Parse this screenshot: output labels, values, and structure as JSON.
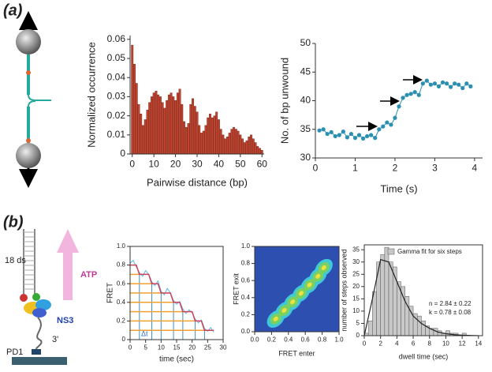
{
  "panel_labels": [
    "(a)",
    "(b)"
  ],
  "diagram": {
    "ds_label": "18 ds",
    "atp": "ATP",
    "ns3": "NS3",
    "end": "3'",
    "pd1": "PD1"
  },
  "chart_data": [
    {
      "type": "bar",
      "x_label": "Pairwise distance (bp)",
      "y_label": "Normalized occurrence",
      "color": "#c0432f",
      "x": [
        0,
        1,
        2,
        3,
        4,
        5,
        6,
        7,
        8,
        9,
        10,
        11,
        12,
        13,
        14,
        15,
        16,
        17,
        18,
        19,
        20,
        21,
        22,
        23,
        24,
        25,
        26,
        27,
        28,
        29,
        30,
        31,
        32,
        33,
        34,
        35,
        36,
        37,
        38,
        39,
        40,
        41,
        42,
        43,
        44,
        45,
        46,
        47,
        48,
        49,
        50,
        51,
        52,
        53,
        54,
        55,
        56,
        57,
        58,
        59,
        60
      ],
      "values": [
        0.057,
        0.047,
        0.037,
        0.026,
        0.021,
        0.015,
        0.018,
        0.023,
        0.027,
        0.03,
        0.032,
        0.033,
        0.031,
        0.03,
        0.027,
        0.024,
        0.028,
        0.031,
        0.032,
        0.03,
        0.028,
        0.032,
        0.034,
        0.026,
        0.017,
        0.014,
        0.016,
        0.026,
        0.029,
        0.025,
        0.022,
        0.015,
        0.011,
        0.012,
        0.015,
        0.019,
        0.021,
        0.019,
        0.02,
        0.022,
        0.018,
        0.013,
        0.01,
        0.008,
        0.009,
        0.011,
        0.013,
        0.014,
        0.013,
        0.012,
        0.01,
        0.008,
        0.006,
        0.007,
        0.009,
        0.01,
        0.008,
        0.006,
        0.004,
        0.003,
        0.002
      ],
      "xlim": [
        -1,
        61
      ],
      "xticks": [
        0,
        10,
        20,
        30,
        40,
        50,
        60
      ],
      "ylim": [
        0,
        0.062
      ],
      "yticks": [
        0,
        0.01,
        0.02,
        0.03,
        0.04,
        0.05,
        0.06
      ]
    },
    {
      "type": "scatter",
      "x_label": "Time (s)",
      "y_label": "No. of bp unwound",
      "color": "#2a8fb0",
      "x": [
        0.1,
        0.2,
        0.3,
        0.4,
        0.5,
        0.6,
        0.7,
        0.8,
        0.9,
        1.0,
        1.1,
        1.2,
        1.3,
        1.4,
        1.5,
        1.6,
        1.7,
        1.8,
        1.9,
        2.0,
        2.1,
        2.2,
        2.3,
        2.4,
        2.5,
        2.6,
        2.7,
        2.8,
        2.9,
        3.0,
        3.1,
        3.2,
        3.3,
        3.4,
        3.5,
        3.6,
        3.7,
        3.8,
        3.9
      ],
      "values": [
        34.8,
        35.0,
        34.2,
        34.5,
        33.8,
        34.0,
        34.6,
        33.6,
        34.2,
        33.5,
        34.0,
        33.4,
        33.8,
        34.0,
        33.5,
        35.0,
        35.5,
        36.2,
        35.8,
        37.0,
        39.0,
        40.5,
        41.0,
        41.2,
        41.5,
        41.0,
        43.0,
        43.5,
        42.8,
        43.0,
        42.5,
        43.2,
        43.0,
        42.4,
        43.0,
        42.8,
        42.2,
        43.0,
        42.5
      ],
      "xlim": [
        0,
        4.2
      ],
      "xticks": [
        0,
        1,
        2,
        3,
        4
      ],
      "ylim": [
        30,
        50
      ],
      "yticks": [
        30,
        35,
        40,
        45,
        50
      ]
    },
    {
      "type": "line",
      "x_label": "time (sec)",
      "y_label": "FRET",
      "annotation": "Δt",
      "x": [
        0,
        1,
        2,
        3,
        4,
        5,
        6,
        7,
        8,
        9,
        10,
        11,
        12,
        13,
        14,
        15,
        16,
        17,
        18,
        19,
        20,
        21,
        22,
        23,
        24,
        25,
        26,
        27
      ],
      "series": [
        {
          "color": "#5bb8e8",
          "values": [
            0.82,
            0.85,
            0.78,
            0.72,
            0.68,
            0.74,
            0.7,
            0.62,
            0.58,
            0.63,
            0.52,
            0.48,
            0.55,
            0.5,
            0.42,
            0.38,
            0.41,
            0.33,
            0.28,
            0.32,
            0.29,
            0.22,
            0.18,
            0.21,
            0.12,
            0.09,
            0.13,
            0.08
          ]
        },
        {
          "color": "#d0405a",
          "values": [
            0.8,
            0.8,
            0.8,
            0.7,
            0.7,
            0.7,
            0.7,
            0.6,
            0.6,
            0.6,
            0.5,
            0.5,
            0.5,
            0.5,
            0.4,
            0.4,
            0.4,
            0.3,
            0.3,
            0.3,
            0.3,
            0.2,
            0.2,
            0.2,
            0.1,
            0.1,
            0.1,
            0.1
          ]
        }
      ],
      "xlim": [
        0,
        30
      ],
      "xticks": [
        0,
        5,
        10,
        15,
        20,
        25,
        30
      ],
      "ylim": [
        0,
        1
      ],
      "yticks": [
        0,
        0.2,
        0.4,
        0.6,
        0.8,
        {
          "value": 1,
          "label": "1.0"
        }
      ]
    },
    {
      "type": "density",
      "x_label": "FRET enter",
      "y_label": "FRET exit",
      "x": [
        0.25,
        0.35,
        0.45,
        0.55,
        0.65,
        0.75,
        0.82
      ],
      "values": [
        0.15,
        0.25,
        0.35,
        0.45,
        0.55,
        0.65,
        0.75
      ],
      "xlim": [
        0,
        1
      ],
      "xticks": [
        {
          "value": 0,
          "label": "0.0"
        },
        0.2,
        0.4,
        0.6,
        0.8,
        {
          "value": 1,
          "label": "1.0"
        }
      ],
      "ylim": [
        0,
        1
      ],
      "yticks": [
        {
          "value": 0,
          "label": "0.0"
        },
        0.2,
        0.4,
        0.6,
        0.8,
        {
          "value": 1,
          "label": "1.0"
        }
      ]
    },
    {
      "type": "histogram",
      "x_label": "dwell time (sec)",
      "y_label": "number of steps observed",
      "bins": [
        0,
        0.5,
        1,
        1.5,
        2,
        2.5,
        3,
        3.5,
        4,
        4.5,
        5,
        5.5,
        6,
        6.5,
        7,
        7.5,
        8,
        8.5,
        9,
        9.5,
        10,
        10.5,
        11,
        11.5,
        12,
        12.5,
        13,
        13.5,
        14
      ],
      "series": [
        {
          "name": "Gamma fit for six steps",
          "color": "#c8c8c8",
          "values": [
            1,
            6,
            18,
            30,
            33,
            36,
            30,
            28,
            22,
            20,
            16,
            12,
            9,
            8,
            6,
            4,
            3,
            3,
            2,
            1,
            2,
            1,
            1,
            0,
            1,
            0,
            0,
            0
          ]
        }
      ],
      "fit": {
        "color": "#222222",
        "x": [
          0,
          1,
          2,
          3,
          4,
          5,
          6,
          7,
          8,
          9,
          10,
          11,
          12,
          13,
          14
        ],
        "values": [
          0,
          15,
          31,
          30,
          22,
          14,
          8,
          5,
          3,
          1.5,
          0.8,
          0.4,
          0.2,
          0.1,
          0
        ]
      },
      "annotations": [
        "n = 2.84 ± 0.22",
        "k = 0.78 ± 0.08"
      ],
      "xlim": [
        0,
        14.5
      ],
      "xticks": [
        0,
        2,
        4,
        6,
        8,
        10,
        12,
        14
      ],
      "ylim": [
        0,
        37
      ],
      "yticks": [
        0,
        5,
        10,
        15,
        20,
        25,
        30,
        35
      ]
    }
  ]
}
